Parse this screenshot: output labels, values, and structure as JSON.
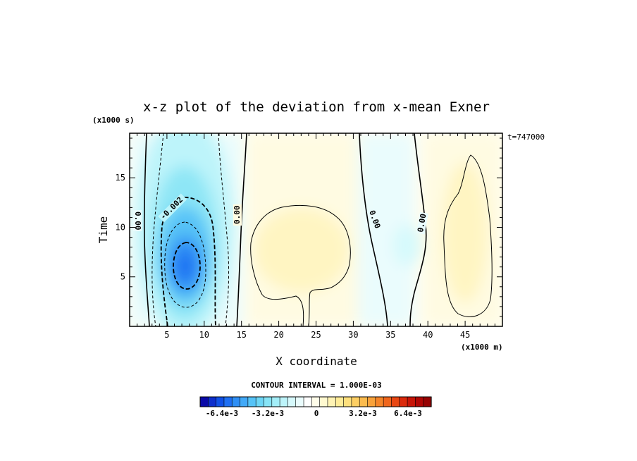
{
  "chart_data": {
    "type": "heatmap",
    "title": "x-z plot of the deviation from x-mean Exner",
    "xlabel": "X coordinate",
    "ylabel": "Time",
    "x_unit": "(x1000 m)",
    "y_unit": "(x1000 s)",
    "time_stamp": "t=747000",
    "xlim": [
      0,
      50
    ],
    "ylim": [
      0,
      19.5
    ],
    "x_ticks": [
      "5",
      "10",
      "15",
      "20",
      "25",
      "30",
      "35",
      "40",
      "45"
    ],
    "y_ticks": [
      "5",
      "10",
      "15"
    ],
    "contour_interval_text": "CONTOUR INTERVAL = 1.000E-03",
    "colorbar": {
      "labels": [
        "-6.4e-3",
        "-3.2e-3",
        "0",
        "3.2e-3",
        "6.4e-3"
      ],
      "colors": [
        "#0a0aa8",
        "#0d2ecc",
        "#1050e6",
        "#1f6ff2",
        "#2f8ff5",
        "#42a9f7",
        "#56c3f7",
        "#6dd6f6",
        "#87e4f6",
        "#a3eef8",
        "#bdf4fa",
        "#d6f9fc",
        "#eafcfd",
        "#ffffff",
        "#fffdea",
        "#fff9d0",
        "#fff3b4",
        "#ffec98",
        "#fee07d",
        "#fdcf64",
        "#fbbb4e",
        "#f8a23b",
        "#f4852a",
        "#ef661d",
        "#e84713",
        "#db2a0c",
        "#c71407",
        "#b00604",
        "#960202"
      ]
    },
    "contour_labels": [
      {
        "text": "0.00"
      },
      {
        "text": "-0.002"
      },
      {
        "text": "0.00"
      },
      {
        "text": "0.00"
      },
      {
        "text": "0.00"
      }
    ],
    "anomalies": [
      {
        "sign": "negative",
        "x_center": 7.5,
        "t_center": 6.5,
        "peak": -0.0045
      },
      {
        "sign": "positive",
        "x_center": 23,
        "t_center": 8.5,
        "peak": 0.0012
      },
      {
        "sign": "negative",
        "x_center": 35,
        "t_center": 9,
        "peak": -0.0008
      },
      {
        "sign": "positive",
        "x_center": 46,
        "t_center": 10,
        "peak": 0.0014
      }
    ]
  }
}
